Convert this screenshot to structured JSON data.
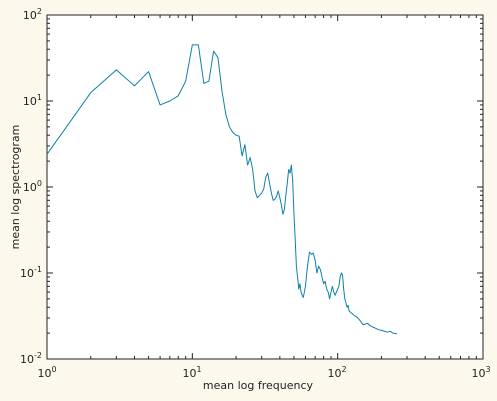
{
  "chart_data": {
    "type": "line",
    "title": "",
    "xlabel": "mean log frequency",
    "ylabel": "mean log spectrogram",
    "xscale": "log",
    "yscale": "log",
    "xlim": [
      1,
      1000
    ],
    "ylim": [
      0.01,
      100
    ],
    "grid": false,
    "legend": "none",
    "x_ticks": [
      {
        "base": "10",
        "exp": "0"
      },
      {
        "base": "10",
        "exp": "1"
      },
      {
        "base": "10",
        "exp": "2"
      },
      {
        "base": "10",
        "exp": "3"
      }
    ],
    "y_ticks": [
      {
        "base": "10",
        "exp": "-2"
      },
      {
        "base": "10",
        "exp": "-1"
      },
      {
        "base": "10",
        "exp": "0"
      },
      {
        "base": "10",
        "exp": "1"
      },
      {
        "base": "10",
        "exp": "2"
      }
    ],
    "colors": {
      "background": "#fdf8ec",
      "axes": "#ffffff",
      "line": "#0e7fab"
    },
    "series": [
      {
        "x": [
          1,
          2,
          3,
          4,
          5,
          6,
          7,
          8,
          9,
          10,
          11,
          12,
          13,
          14,
          15,
          16,
          17,
          18,
          19,
          20,
          21,
          22,
          23,
          24,
          25,
          26,
          27,
          28,
          29,
          30,
          31,
          32,
          33,
          34,
          35,
          36,
          37,
          38,
          39,
          40,
          41,
          42,
          43,
          44,
          45,
          46,
          47,
          48,
          49,
          50,
          51,
          52,
          53,
          54,
          55,
          56,
          57,
          58,
          59,
          60,
          62,
          64,
          66,
          68,
          70,
          72,
          74,
          76,
          78,
          80,
          82,
          84,
          86,
          88,
          90,
          92,
          94,
          96,
          98,
          100,
          102,
          104,
          106,
          108,
          110,
          112,
          114,
          116,
          118,
          120,
          125,
          130,
          135,
          140,
          145,
          150,
          160,
          170,
          180,
          190,
          200,
          210,
          220,
          230,
          240,
          250,
          256
        ],
        "y": [
          2.4,
          12.5,
          23,
          15,
          22,
          9,
          10,
          11.5,
          17,
          45,
          45,
          16,
          17,
          38,
          32,
          13,
          7,
          5,
          4.3,
          4,
          3.9,
          2.3,
          3.1,
          1.8,
          2.2,
          1.6,
          0.9,
          0.75,
          0.8,
          0.85,
          0.95,
          1.3,
          1.45,
          1.1,
          0.85,
          0.7,
          0.72,
          0.78,
          0.9,
          0.75,
          0.62,
          0.48,
          0.55,
          0.8,
          1.1,
          1.6,
          1.45,
          1.8,
          1.2,
          0.5,
          0.25,
          0.12,
          0.09,
          0.065,
          0.075,
          0.06,
          0.055,
          0.052,
          0.06,
          0.07,
          0.12,
          0.175,
          0.165,
          0.17,
          0.14,
          0.1,
          0.12,
          0.11,
          0.09,
          0.075,
          0.08,
          0.065,
          0.06,
          0.05,
          0.06,
          0.07,
          0.06,
          0.055,
          0.06,
          0.065,
          0.07,
          0.09,
          0.1,
          0.095,
          0.065,
          0.05,
          0.045,
          0.04,
          0.042,
          0.036,
          0.034,
          0.032,
          0.031,
          0.029,
          0.027,
          0.025,
          0.026,
          0.024,
          0.023,
          0.022,
          0.0215,
          0.021,
          0.0205,
          0.021,
          0.02,
          0.0198,
          0.0195
        ]
      }
    ]
  }
}
